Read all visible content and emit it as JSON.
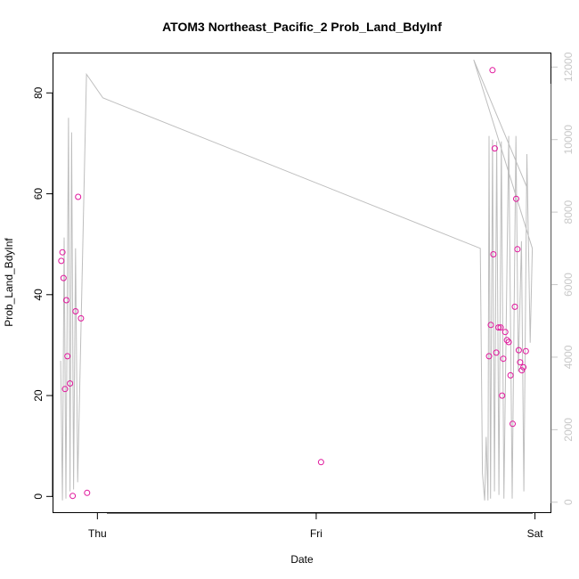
{
  "chart_data": {
    "type": "scatter",
    "title": "ATOM3 Northeast_Pacific_2 Prob_Land_BdyInf",
    "xlabel": "Date",
    "ylabel": "Prob_Land_BdyInf",
    "x_ticks": [
      {
        "label": "Thu",
        "value": 0
      },
      {
        "label": "Fri",
        "value": 1
      },
      {
        "label": "Sat",
        "value": 2
      }
    ],
    "xlim": [
      -0.205,
      2.075
    ],
    "ylim": [
      -3.3,
      88
    ],
    "y_ticks": [
      0,
      20,
      40,
      60,
      80
    ],
    "y2lim": [
      -300,
      12400
    ],
    "y2_ticks": [
      0,
      2000,
      4000,
      6000,
      8000,
      10000,
      12000
    ],
    "marker_color": "#e0159b",
    "line_color": "#bebebe",
    "points": [
      {
        "x": -0.165,
        "y": 46.7
      },
      {
        "x": -0.16,
        "y": 48.4
      },
      {
        "x": -0.155,
        "y": 43.3
      },
      {
        "x": -0.148,
        "y": 21.3
      },
      {
        "x": -0.142,
        "y": 38.9
      },
      {
        "x": -0.137,
        "y": 27.8
      },
      {
        "x": -0.125,
        "y": 22.4
      },
      {
        "x": -0.113,
        "y": 0.1
      },
      {
        "x": -0.1,
        "y": 36.7
      },
      {
        "x": -0.088,
        "y": 59.4
      },
      {
        "x": -0.075,
        "y": 35.3
      },
      {
        "x": -0.047,
        "y": 0.7
      },
      {
        "x": 1.022,
        "y": 6.8
      },
      {
        "x": 1.79,
        "y": 27.8
      },
      {
        "x": 1.798,
        "y": 34
      },
      {
        "x": 1.806,
        "y": 84.5
      },
      {
        "x": 1.81,
        "y": 48
      },
      {
        "x": 1.816,
        "y": 69
      },
      {
        "x": 1.823,
        "y": 28.5
      },
      {
        "x": 1.833,
        "y": 33.5
      },
      {
        "x": 1.843,
        "y": 33.5
      },
      {
        "x": 1.85,
        "y": 20
      },
      {
        "x": 1.855,
        "y": 27.3
      },
      {
        "x": 1.864,
        "y": 32.6
      },
      {
        "x": 1.872,
        "y": 31
      },
      {
        "x": 1.88,
        "y": 30.6
      },
      {
        "x": 1.888,
        "y": 24
      },
      {
        "x": 1.898,
        "y": 14.4
      },
      {
        "x": 1.908,
        "y": 37.6
      },
      {
        "x": 1.914,
        "y": 59
      },
      {
        "x": 1.92,
        "y": 49
      },
      {
        "x": 1.926,
        "y": 29
      },
      {
        "x": 1.932,
        "y": 26.6
      },
      {
        "x": 1.94,
        "y": 25
      },
      {
        "x": 1.947,
        "y": 25.6
      },
      {
        "x": 1.958,
        "y": 28.8
      }
    ],
    "line": [
      {
        "x": -0.168,
        "y2": 3900
      },
      {
        "x": -0.16,
        "y2": 50
      },
      {
        "x": -0.152,
        "y2": 7300
      },
      {
        "x": -0.144,
        "y2": 100
      },
      {
        "x": -0.132,
        "y2": 10600
      },
      {
        "x": -0.125,
        "y2": 300
      },
      {
        "x": -0.118,
        "y2": 10200
      },
      {
        "x": -0.109,
        "y2": 350
      },
      {
        "x": -0.1,
        "y2": 7000
      },
      {
        "x": -0.09,
        "y2": 550
      },
      {
        "x": -0.05,
        "y2": 11800
      },
      {
        "x": 0.025,
        "y2": 11150
      },
      {
        "x": 1.75,
        "y2": 7000
      },
      {
        "x": 1.76,
        "y2": 800
      },
      {
        "x": 1.77,
        "y2": 50
      },
      {
        "x": 1.777,
        "y2": 1800
      },
      {
        "x": 1.785,
        "y2": 50
      },
      {
        "x": 1.79,
        "y2": 10100
      },
      {
        "x": 1.797,
        "y2": 100
      },
      {
        "x": 1.806,
        "y2": 10000
      },
      {
        "x": 1.815,
        "y2": 300
      },
      {
        "x": 1.825,
        "y2": 9950
      },
      {
        "x": 1.835,
        "y2": 200
      },
      {
        "x": 1.846,
        "y2": 9950
      },
      {
        "x": 1.858,
        "y2": 100
      },
      {
        "x": 1.88,
        "y2": 10100
      },
      {
        "x": 1.896,
        "y2": 100
      },
      {
        "x": 1.913,
        "y2": 10100
      },
      {
        "x": 1.924,
        "y2": 3600
      },
      {
        "x": 1.938,
        "y2": 7200
      },
      {
        "x": 1.949,
        "y2": 300
      },
      {
        "x": 1.963,
        "y2": 9600
      },
      {
        "x": 1.978,
        "y2": 4400
      },
      {
        "x": 1.988,
        "y2": 7000
      },
      {
        "x": 1.72,
        "y2": 12200
      },
      {
        "x": 1.962,
        "y2": 8700
      }
    ]
  }
}
